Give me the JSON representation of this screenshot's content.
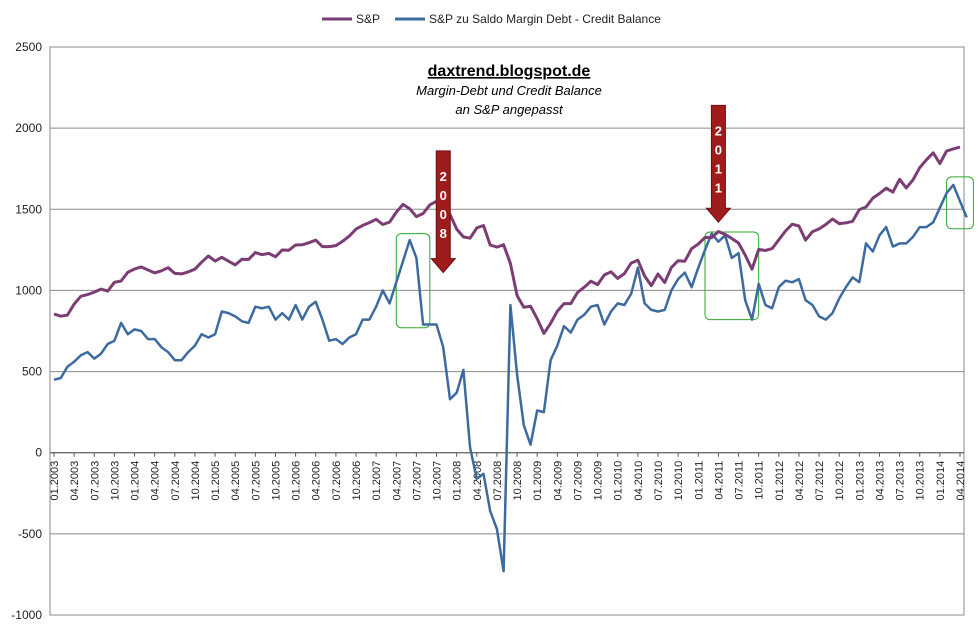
{
  "chart_data": {
    "type": "line",
    "title": "",
    "xlabel": "",
    "ylabel": "",
    "ylim": [
      -1000,
      2500
    ],
    "yticks": [
      2500,
      2000,
      1500,
      1000,
      500,
      0,
      -500,
      -1000
    ],
    "grid": true,
    "legend_position": "top-center",
    "x_tick_labels": [
      "01.2003",
      "04.2003",
      "07.2003",
      "10.2003",
      "01.2004",
      "04.2004",
      "07.2004",
      "10.2004",
      "01.2005",
      "04.2005",
      "07.2005",
      "10.2005",
      "01.2006",
      "04.2006",
      "07.2006",
      "10.2006",
      "01.2007",
      "04.2007",
      "07.2007",
      "10.2007",
      "01.2008",
      "04.2008",
      "07.2008",
      "10.2008",
      "01.2009",
      "04.2009",
      "07.2009",
      "10.2009",
      "01.2010",
      "04.2010",
      "07.2010",
      "10.2010",
      "01.2011",
      "04.2011",
      "07.2011",
      "10.2011",
      "01.2012",
      "04.2012",
      "07.2012",
      "10.2012",
      "01.2013",
      "04.2013",
      "07.2013",
      "10.2013",
      "01.2014",
      "04.2014"
    ],
    "series": [
      {
        "name": "S&P",
        "color": "#7b3d74",
        "values": [
          855,
          841,
          848,
          916,
          964,
          974,
          990,
          1008,
          996,
          1050,
          1058,
          1112,
          1132,
          1145,
          1126,
          1108,
          1121,
          1140,
          1105,
          1102,
          1114,
          1131,
          1174,
          1212,
          1181,
          1204,
          1180,
          1157,
          1192,
          1191,
          1234,
          1220,
          1228,
          1207,
          1249,
          1248,
          1280,
          1281,
          1294,
          1310,
          1270,
          1270,
          1276,
          1303,
          1335,
          1378,
          1401,
          1418,
          1438,
          1406,
          1421,
          1482,
          1530,
          1503,
          1455,
          1474,
          1527,
          1549,
          1481,
          1468,
          1378,
          1330,
          1322,
          1385,
          1400,
          1280,
          1267,
          1282,
          1166,
          968,
          896,
          903,
          826,
          735,
          797,
          872,
          919,
          919,
          987,
          1020,
          1057,
          1036,
          1095,
          1115,
          1074,
          1104,
          1169,
          1186,
          1089,
          1030,
          1101,
          1049,
          1141,
          1183,
          1180,
          1257,
          1286,
          1327,
          1325,
          1363,
          1345,
          1320,
          1292,
          1218,
          1131,
          1253,
          1246,
          1258,
          1312,
          1366,
          1408,
          1397,
          1310,
          1362,
          1379,
          1406,
          1440,
          1412,
          1416,
          1426,
          1498,
          1514,
          1569,
          1597,
          1630,
          1606,
          1685,
          1632,
          1681,
          1756,
          1805,
          1848,
          1782,
          1859,
          1872,
          1883
        ]
      },
      {
        "name": "S&P zu Saldo Margin Debt - Credit Balance",
        "color": "#3d6ba0",
        "values": [
          450,
          460,
          530,
          560,
          600,
          620,
          580,
          610,
          670,
          690,
          800,
          730,
          760,
          750,
          700,
          700,
          650,
          620,
          570,
          570,
          620,
          660,
          730,
          710,
          730,
          870,
          860,
          840,
          810,
          800,
          900,
          890,
          900,
          820,
          860,
          820,
          910,
          820,
          900,
          930,
          820,
          690,
          700,
          670,
          710,
          730,
          820,
          820,
          900,
          1000,
          920,
          1050,
          1180,
          1310,
          1200,
          790,
          790,
          790,
          650,
          330,
          370,
          510,
          30,
          -160,
          -130,
          -360,
          -470,
          -730,
          910,
          480,
          170,
          50,
          260,
          250,
          570,
          660,
          780,
          740,
          820,
          850,
          900,
          910,
          790,
          870,
          920,
          910,
          980,
          1140,
          920,
          880,
          870,
          880,
          1000,
          1070,
          1110,
          1020,
          1140,
          1250,
          1350,
          1300,
          1340,
          1200,
          1230,
          940,
          820,
          1040,
          910,
          890,
          1020,
          1060,
          1050,
          1070,
          940,
          910,
          840,
          820,
          860,
          950,
          1020,
          1080,
          1050,
          1290,
          1240,
          1340,
          1390,
          1270,
          1290,
          1290,
          1330,
          1390,
          1390,
          1420,
          1510,
          1600,
          1650,
          1550,
          1450
        ]
      }
    ],
    "annotations": {
      "title": "daxtrend.blogspot.de",
      "subtitle_line1": "Margin-Debt und Credit Balance",
      "subtitle_line2": "an S&P angepasst",
      "arrows": [
        {
          "label": "2008",
          "chars": [
            "2",
            "0",
            "0",
            "8"
          ],
          "x_index": 58,
          "y_top": 1860,
          "y_tip": 1110,
          "color": "#a01c1c"
        },
        {
          "label": "2011",
          "chars": [
            "2",
            "0",
            "1",
            "1"
          ],
          "x_index": 99,
          "y_top": 2140,
          "y_tip": 1420,
          "color": "#a01c1c"
        }
      ],
      "boxes": [
        {
          "x_index_from": 51,
          "x_index_to": 56,
          "y_from": 770,
          "y_to": 1350,
          "color": "#2eaa2e"
        },
        {
          "x_index_from": 97,
          "x_index_to": 105,
          "y_from": 820,
          "y_to": 1360,
          "color": "#2eaa2e"
        },
        {
          "x_index_from": 133,
          "x_index_to": 137,
          "y_from": 1380,
          "y_to": 1700,
          "color": "#2eaa2e"
        }
      ]
    }
  }
}
